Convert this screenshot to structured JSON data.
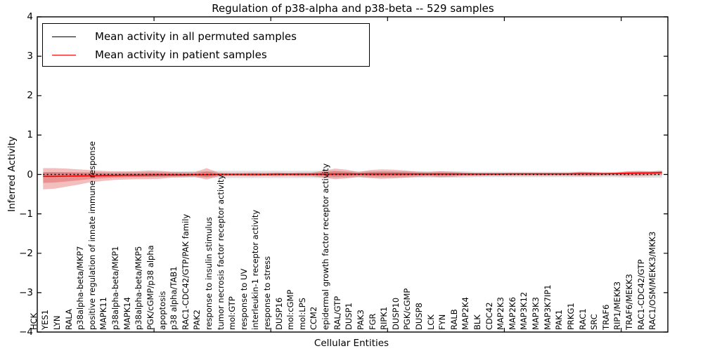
{
  "chart_data": {
    "type": "line",
    "title": "Regulation of p38-alpha and p38-beta -- 529 samples",
    "xlabel": "Cellular Entities",
    "ylabel": "Inferred Activity",
    "ylim": [
      -4,
      4
    ],
    "ytick_values": [
      4,
      3,
      2,
      1,
      0,
      -1,
      -2,
      -3,
      -4
    ],
    "ytick_labels": [
      "4",
      "3",
      "2",
      "1",
      "0",
      "−1",
      "−2",
      "−3",
      "−4"
    ],
    "xtick_positions": [
      10,
      20,
      30,
      40,
      50
    ],
    "grid": false,
    "legend": {
      "position": "upper-left",
      "entries": [
        {
          "label": "Mean activity in all permuted samples",
          "color": "#000000",
          "line_style": "solid"
        },
        {
          "label": "Mean activity in patient samples",
          "color": "#ff0000",
          "line_style": "solid"
        }
      ]
    },
    "colors": {
      "patient_line": "#ff0000",
      "permuted_line": "#000000",
      "patient_band": "rgba(214,39,40,0.30)",
      "permuted_band": "rgba(0,0,0,0.12)"
    },
    "categories": [
      "HCK",
      "YES1",
      "LYN",
      "RALA",
      "p38alpha-beta/MKP7",
      "positive regulation of innate immune response",
      "MAPK11",
      "p38alpha-beta/MKP1",
      "MAPK14",
      "p38alpha-beta/MKP5",
      "PGK/cGMP/p38 alpha",
      "apoptosis",
      "p38 alpha/TAB1",
      "RAC1-CDC42/GTP/PAK family",
      "PAK2",
      "response to insulin stimulus",
      "tumor necrosis factor receptor activity",
      "mol:GTP",
      "response to UV",
      "interleukin-1 receptor activity",
      "response to stress",
      "DUSP16",
      "mol:cGMP",
      "mol:LPS",
      "CCM2",
      "epidermal growth factor receptor activity",
      "RAL/GTP",
      "DUSP1",
      "PAK3",
      "FGR",
      "RIPK1",
      "DUSP10",
      "PGK/cGMP",
      "DUSP8",
      "LCK",
      "FYN",
      "RALB",
      "MAP2K4",
      "BLK",
      "CDC42",
      "MAP2K3",
      "MAP2K6",
      "MAP3K12",
      "MAP3K3",
      "MAP3K7IP1",
      "PAK1",
      "PRKG1",
      "RAC1",
      "SRC",
      "TRAF6",
      "RIP1/MEKK3",
      "TRAF6/MEKK3",
      "RAC1-CDC42/GTP",
      "RAC1/OSM/MEKK3/MKK3"
    ],
    "series": [
      {
        "name": "permuted_mean",
        "values": [
          0,
          0,
          0,
          0,
          0,
          0,
          0,
          0,
          0,
          0,
          0,
          0,
          0,
          0,
          0,
          0,
          0,
          0,
          0,
          0,
          0,
          0,
          0,
          0,
          0,
          0,
          0,
          0,
          0,
          0,
          0,
          0,
          0,
          0,
          0,
          0,
          0,
          0,
          0,
          0,
          0,
          0,
          0,
          0,
          0,
          0,
          0,
          0,
          0,
          0,
          0,
          0,
          0,
          0
        ]
      },
      {
        "name": "patient_mean",
        "values": [
          -0.05,
          -0.05,
          -0.045,
          -0.04,
          -0.035,
          -0.03,
          -0.025,
          -0.02,
          -0.02,
          -0.015,
          -0.01,
          -0.01,
          -0.01,
          -0.005,
          -0.005,
          0,
          0,
          0,
          0,
          0,
          0.005,
          0.005,
          0.005,
          0.005,
          0.005,
          0.01,
          0.01,
          0.01,
          0.01,
          0.01,
          0.01,
          0.01,
          0.01,
          0.01,
          0.01,
          0.01,
          0.01,
          0.01,
          0.01,
          0.01,
          0.015,
          0.015,
          0.015,
          0.015,
          0.015,
          0.015,
          0.02,
          0.02,
          0.02,
          0.025,
          0.03,
          0.035,
          0.04,
          0.05
        ]
      },
      {
        "name": "patient_band_upper",
        "values": [
          0.16,
          0.16,
          0.15,
          0.13,
          0.11,
          0.09,
          0.08,
          0.08,
          0.08,
          0.1,
          0.09,
          0.07,
          0.06,
          0.06,
          0.16,
          0.05,
          0.04,
          0.04,
          0.05,
          0.04,
          0.05,
          0.04,
          0.05,
          0.05,
          0.09,
          0.15,
          0.12,
          0.06,
          0.11,
          0.13,
          0.12,
          0.1,
          0.07,
          0.06,
          0.08,
          0.07,
          0.05,
          0.04,
          0.04,
          0.04,
          0.04,
          0.04,
          0.04,
          0.04,
          0.04,
          0.04,
          0.07,
          0.06,
          0.04,
          0.04,
          0.08,
          0.09,
          0.08,
          0.1
        ]
      },
      {
        "name": "patient_band_lower",
        "values": [
          -0.38,
          -0.36,
          -0.31,
          -0.26,
          -0.2,
          -0.17,
          -0.14,
          -0.13,
          -0.12,
          -0.12,
          -0.11,
          -0.08,
          -0.07,
          -0.06,
          -0.13,
          -0.05,
          -0.04,
          -0.04,
          -0.05,
          -0.04,
          -0.05,
          -0.04,
          -0.05,
          -0.05,
          -0.08,
          -0.12,
          -0.1,
          -0.06,
          -0.09,
          -0.11,
          -0.1,
          -0.08,
          -0.06,
          -0.05,
          -0.07,
          -0.06,
          -0.04,
          -0.04,
          -0.03,
          -0.03,
          -0.03,
          -0.03,
          -0.03,
          -0.03,
          -0.03,
          -0.03,
          -0.04,
          -0.04,
          -0.03,
          -0.03,
          -0.04,
          -0.04,
          -0.03,
          -0.02
        ]
      },
      {
        "name": "permuted_band_upper",
        "values": [
          0.06,
          0.06,
          0.06,
          0.06,
          0.06,
          0.06,
          0.06,
          0.06,
          0.07,
          0.07,
          0.07,
          0.07,
          0.08,
          0.08,
          0.08,
          0.09,
          0.09,
          0.09,
          0.09,
          0.09,
          0.09,
          0.09,
          0.09,
          0.09,
          0.09,
          0.09,
          0.08,
          0.08,
          0.08,
          0.08,
          0.08,
          0.08,
          0.08,
          0.08,
          0.08,
          0.08,
          0.08,
          0.07,
          0.07,
          0.07,
          0.07,
          0.07,
          0.07,
          0.07,
          0.07,
          0.07,
          0.07,
          0.07,
          0.07,
          0.07,
          0.08,
          0.08,
          0.08,
          0.08
        ]
      },
      {
        "name": "permuted_band_lower",
        "values": [
          -0.06,
          -0.06,
          -0.06,
          -0.06,
          -0.06,
          -0.06,
          -0.06,
          -0.06,
          -0.07,
          -0.07,
          -0.07,
          -0.07,
          -0.08,
          -0.08,
          -0.08,
          -0.09,
          -0.09,
          -0.09,
          -0.09,
          -0.09,
          -0.09,
          -0.09,
          -0.09,
          -0.09,
          -0.09,
          -0.09,
          -0.08,
          -0.08,
          -0.08,
          -0.08,
          -0.08,
          -0.08,
          -0.08,
          -0.08,
          -0.08,
          -0.08,
          -0.08,
          -0.07,
          -0.07,
          -0.07,
          -0.07,
          -0.07,
          -0.07,
          -0.07,
          -0.07,
          -0.07,
          -0.07,
          -0.07,
          -0.07,
          -0.07,
          -0.08,
          -0.08,
          -0.08,
          -0.08
        ]
      }
    ]
  }
}
